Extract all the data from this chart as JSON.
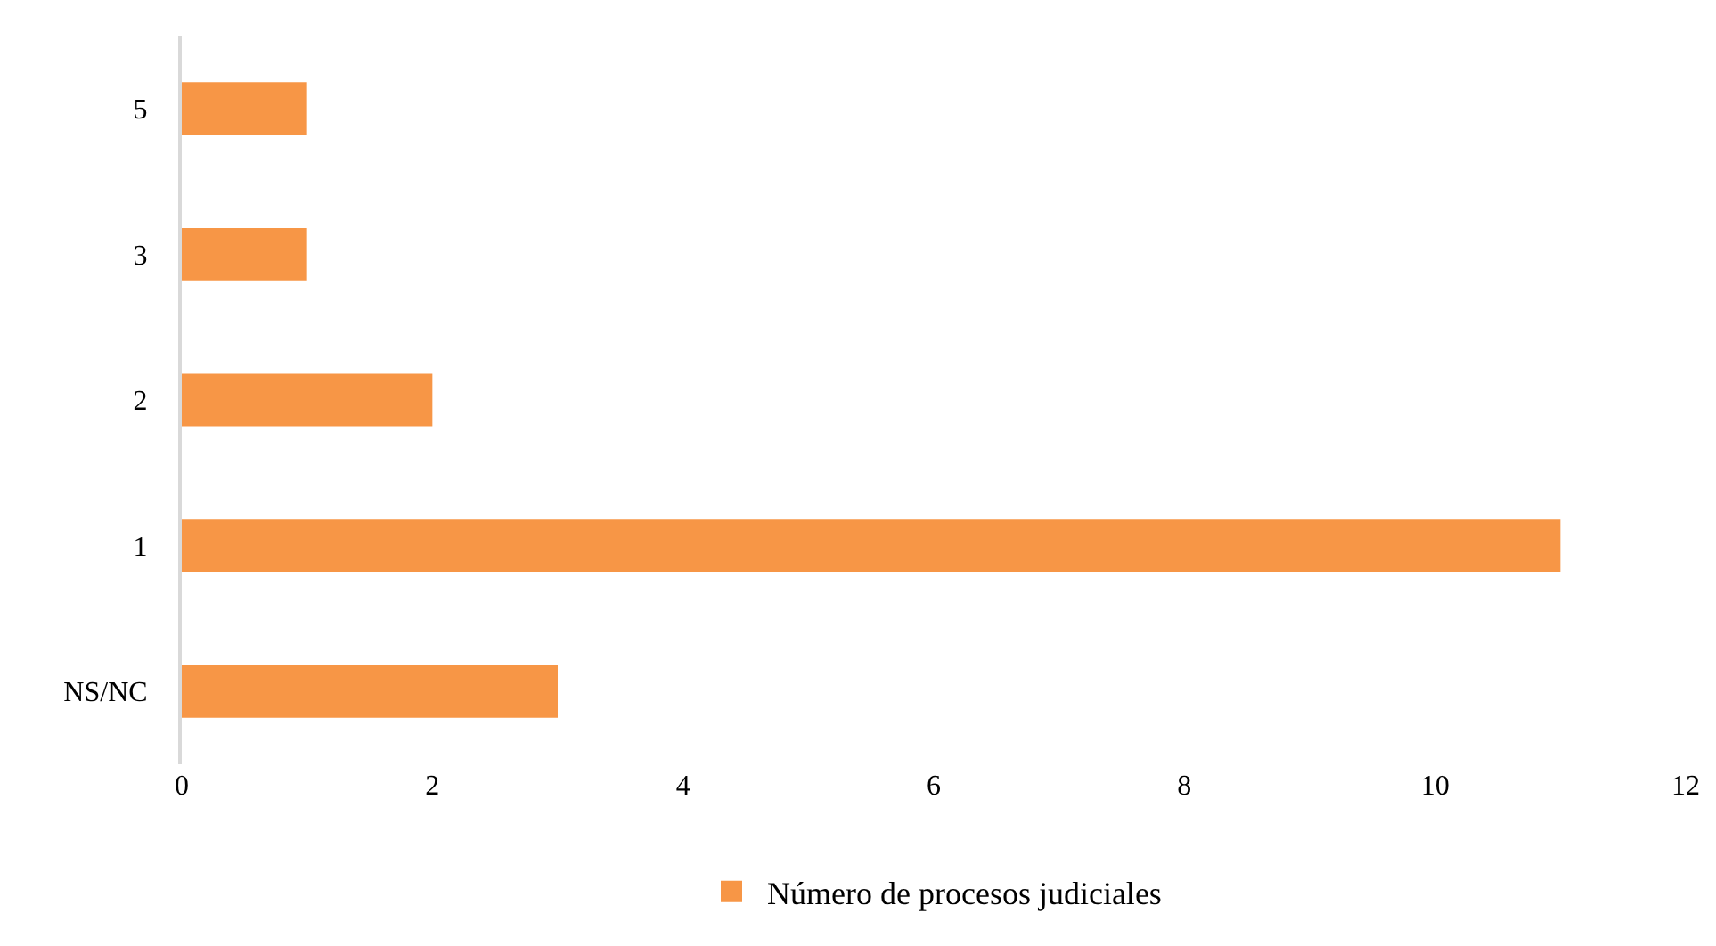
{
  "chart_data": {
    "type": "bar",
    "orientation": "horizontal",
    "categories": [
      "5",
      "3",
      "2",
      "1",
      "NS/NC"
    ],
    "series": [
      {
        "name": "Número de procesos judiciales",
        "color": "#f79646",
        "values": [
          1,
          1,
          2,
          11,
          3
        ]
      }
    ],
    "xlim": [
      0,
      12
    ],
    "xticks": [
      0,
      2,
      4,
      6,
      8,
      10,
      12
    ],
    "grid": false,
    "legend": "bottom"
  }
}
